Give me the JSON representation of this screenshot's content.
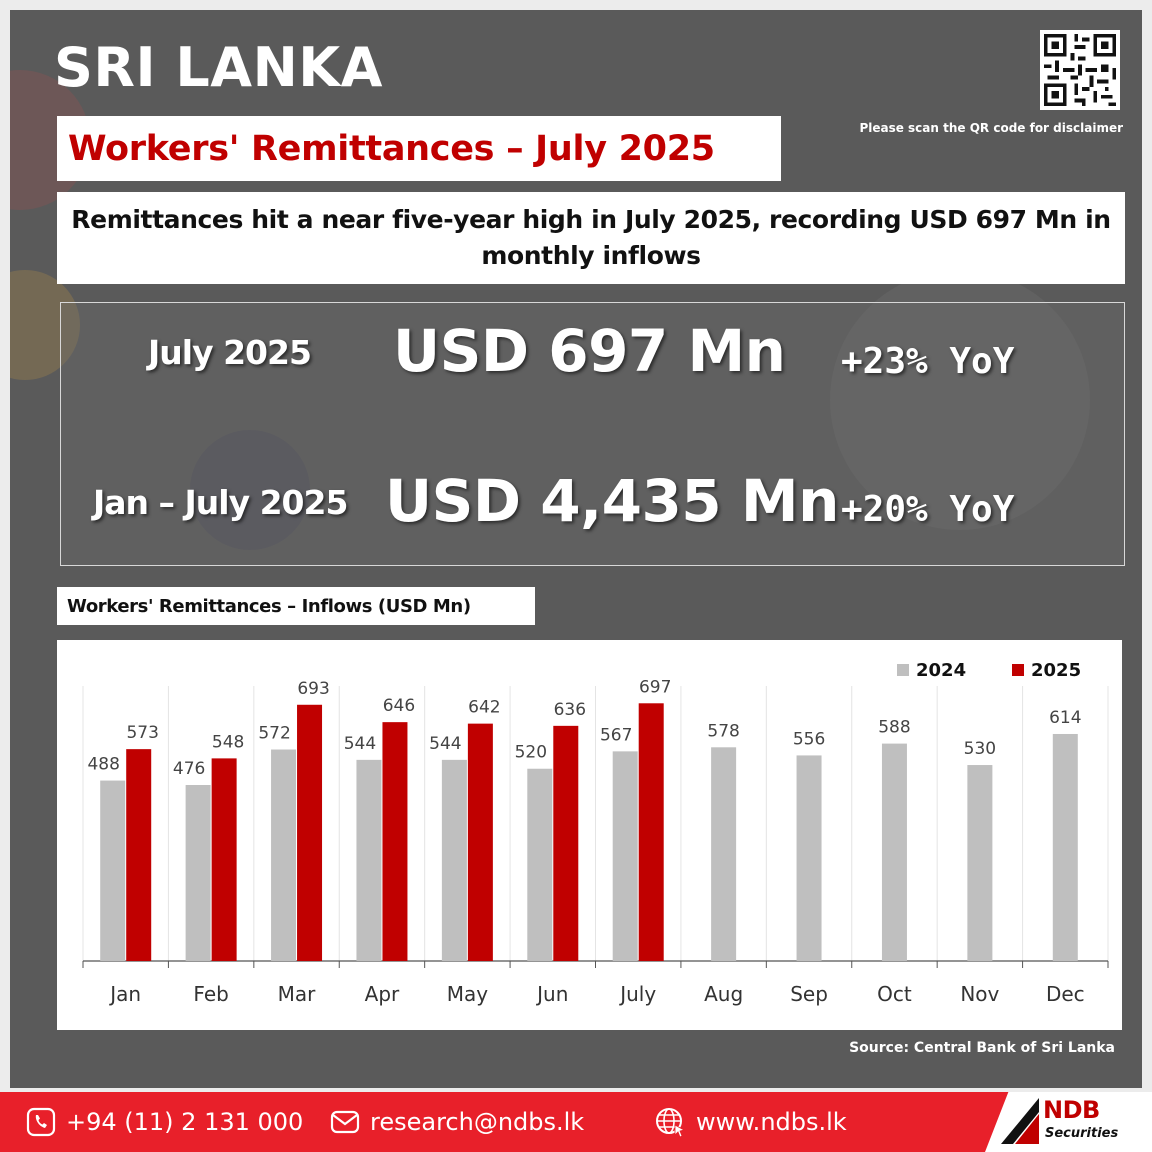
{
  "header": {
    "country": "SRI LANKA",
    "report_title": "Workers' Remittances – July 2025",
    "qr_note": "Please scan the QR code for disclaimer",
    "headline": "Remittances hit a near five-year high in July 2025, recording USD 697 Mn in monthly inflows"
  },
  "kpis": [
    {
      "label": "July 2025",
      "value": "USD 697 Mn",
      "change": "+23% YoY"
    },
    {
      "label": "Jan – July 2025",
      "value": "USD 4,435 Mn",
      "change": "+20% YoY"
    }
  ],
  "chart_title": "Workers' Remittances – Inflows (USD Mn)",
  "chart_data": {
    "type": "bar",
    "categories": [
      "Jan",
      "Feb",
      "Mar",
      "Apr",
      "May",
      "Jun",
      "July",
      "Aug",
      "Sep",
      "Oct",
      "Nov",
      "Dec"
    ],
    "series": [
      {
        "name": "2024",
        "color": "#bfbfbf",
        "values": [
          488,
          476,
          572,
          544,
          544,
          520,
          567,
          578,
          556,
          588,
          530,
          614
        ]
      },
      {
        "name": "2025",
        "color": "#c00000",
        "values": [
          573,
          548,
          693,
          646,
          642,
          636,
          697,
          null,
          null,
          null,
          null,
          null
        ]
      }
    ],
    "ylim": [
      0,
      760
    ],
    "legend": "top-right",
    "grid": false
  },
  "source": "Source: Central Bank of Sri Lanka",
  "footer": {
    "phone": "+94 (11) 2 131 000",
    "email": "research@ndbs.lk",
    "website": "www.ndbs.lk",
    "brand_name": "NDB",
    "brand_sub": "Securities"
  }
}
